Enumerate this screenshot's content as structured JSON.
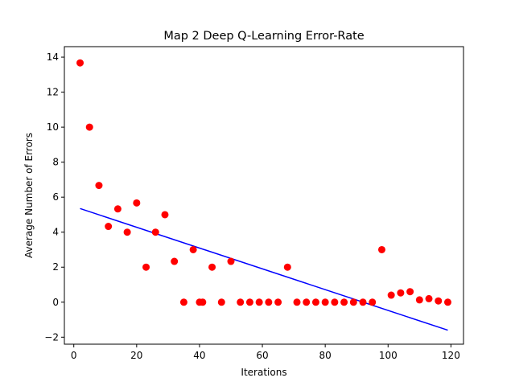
{
  "chart_data": {
    "type": "scatter",
    "title": "Map 2 Deep Q-Learning Error-Rate",
    "xlabel": "Iterations",
    "ylabel": "Average Number of Errors",
    "xlim": [
      -3,
      124
    ],
    "ylim": [
      -2.4,
      14.6
    ],
    "xticks": [
      0,
      20,
      40,
      60,
      80,
      100,
      120
    ],
    "yticks": [
      -2,
      0,
      2,
      4,
      6,
      8,
      10,
      12,
      14
    ],
    "grid": false,
    "legend": "none",
    "points_color": "#ff0000",
    "line_color": "#0000ff",
    "points": [
      [
        2,
        13.67
      ],
      [
        5,
        10.0
      ],
      [
        8,
        6.67
      ],
      [
        11,
        4.33
      ],
      [
        14,
        5.33
      ],
      [
        17,
        4.0
      ],
      [
        20,
        5.67
      ],
      [
        23,
        2.0
      ],
      [
        26,
        4.0
      ],
      [
        29,
        5.0
      ],
      [
        32,
        2.33
      ],
      [
        35,
        0.0
      ],
      [
        38,
        3.0
      ],
      [
        40,
        0.0
      ],
      [
        41,
        0.0
      ],
      [
        44,
        2.0
      ],
      [
        47,
        0.0
      ],
      [
        50,
        2.33
      ],
      [
        53,
        0.0
      ],
      [
        56,
        0.0
      ],
      [
        59,
        0.0
      ],
      [
        62,
        0.0
      ],
      [
        65,
        0.0
      ],
      [
        68,
        2.0
      ],
      [
        71,
        0.0
      ],
      [
        74,
        0.0
      ],
      [
        77,
        0.0
      ],
      [
        80,
        0.0
      ],
      [
        83,
        0.0
      ],
      [
        86,
        0.0
      ],
      [
        89,
        0.0
      ],
      [
        92,
        0.0
      ],
      [
        95,
        0.0
      ],
      [
        98,
        3.0
      ],
      [
        101,
        0.4
      ],
      [
        104,
        0.53
      ],
      [
        107,
        0.6
      ],
      [
        110,
        0.13
      ],
      [
        113,
        0.2
      ],
      [
        116,
        0.07
      ],
      [
        119,
        0.0
      ]
    ],
    "trend_line": [
      [
        2,
        5.35
      ],
      [
        119,
        -1.6
      ]
    ]
  }
}
